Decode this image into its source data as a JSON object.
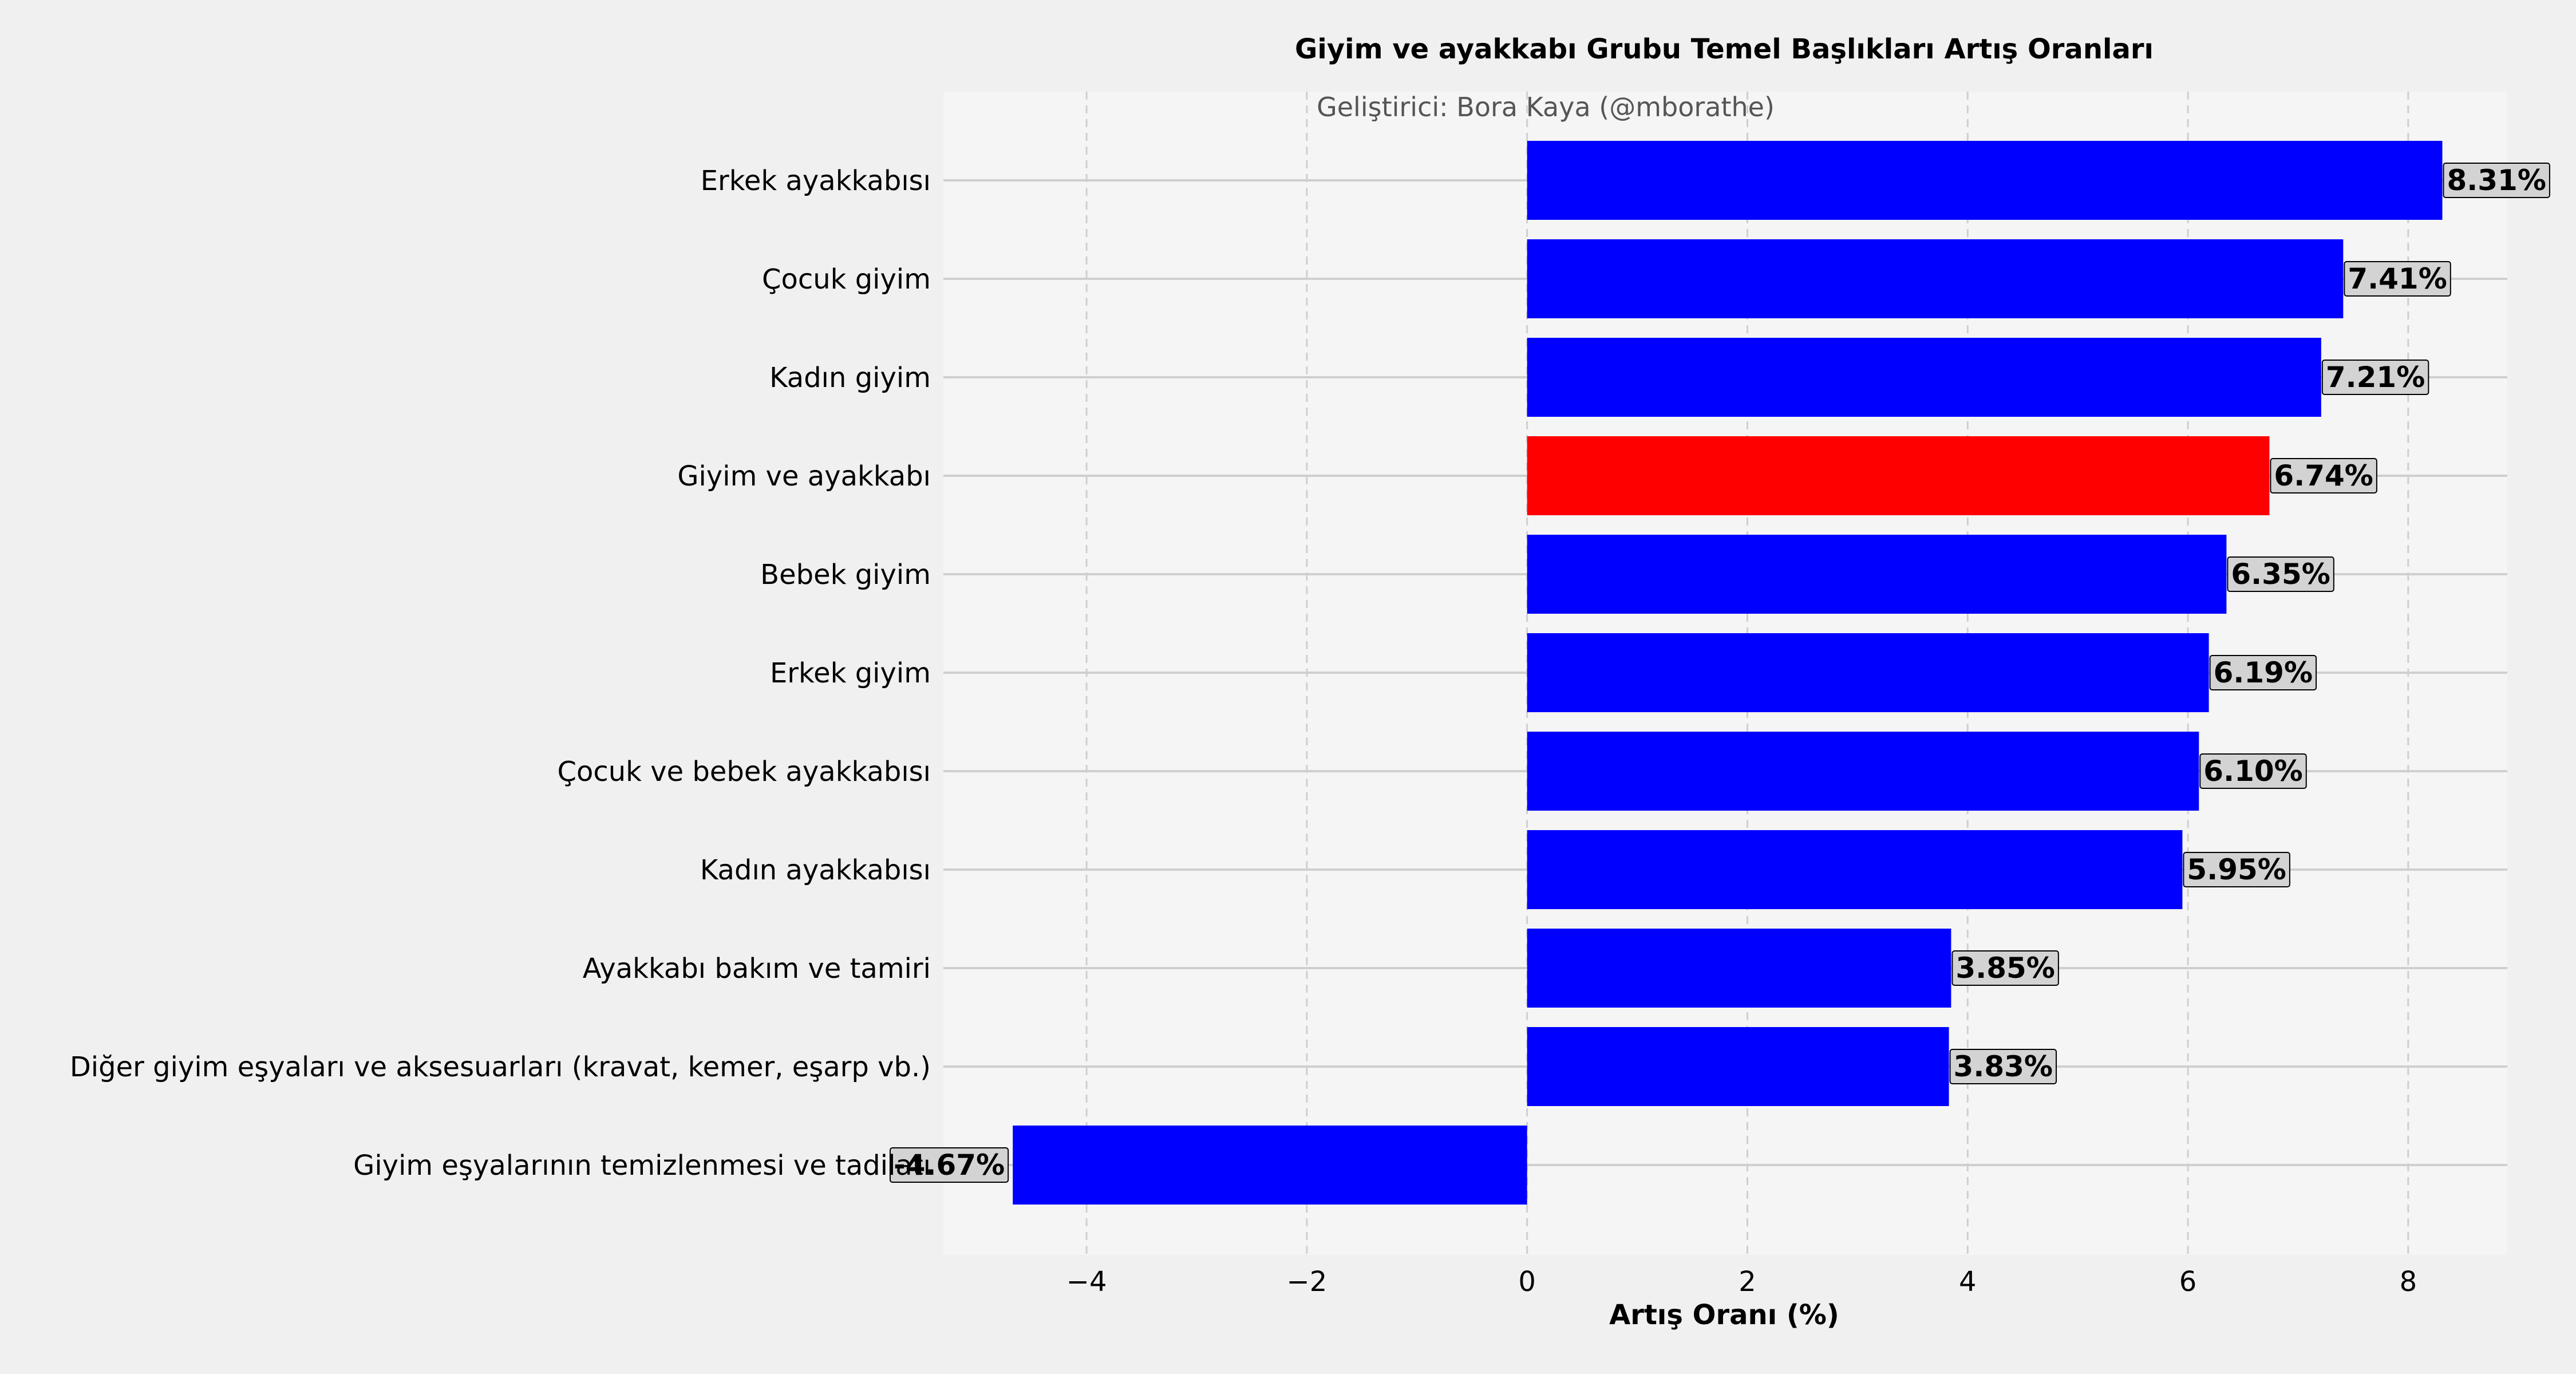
{
  "chart_data": {
    "type": "bar",
    "orientation": "horizontal",
    "title": "Giyim ve ayakkabı Grubu Temel Başlıkları Artış Oranları",
    "subtitle": "Geliştirici: Bora Kaya (@mborathe)",
    "xlabel": "Artış Oranı (%)",
    "ylabel": "",
    "xlim": [
      -5.3,
      8.9
    ],
    "xticks": [
      -4,
      -2,
      0,
      2,
      4,
      6,
      8
    ],
    "xtick_labels": [
      "−4",
      "−2",
      "0",
      "2",
      "4",
      "6",
      "8"
    ],
    "categories": [
      "Erkek ayakkabısı",
      "Çocuk giyim",
      "Kadın giyim",
      "Giyim ve ayakkabı",
      "Bebek giyim",
      "Erkek giyim",
      "Çocuk ve bebek ayakkabısı",
      "Kadın ayakkabısı",
      "Ayakkabı bakım ve tamiri",
      "Diğer giyim eşyaları ve aksesuarları (kravat, kemer, eşarp vb.)",
      "Giyim eşyalarının temizlenmesi ve tadilatı"
    ],
    "values": [
      8.31,
      7.41,
      7.21,
      6.74,
      6.35,
      6.19,
      6.1,
      5.95,
      3.85,
      3.83,
      -4.67
    ],
    "value_labels": [
      "8.31%",
      "7.41%",
      "7.21%",
      "6.74%",
      "6.35%",
      "6.19%",
      "6.10%",
      "5.95%",
      "3.85%",
      "3.83%",
      "-4.67%"
    ],
    "bar_colors": [
      "#0000ff",
      "#0000ff",
      "#0000ff",
      "#ff0000",
      "#0000ff",
      "#0000ff",
      "#0000ff",
      "#0000ff",
      "#0000ff",
      "#0000ff",
      "#0000ff"
    ],
    "grid": true,
    "colors": {
      "figure_background": "#f0f0f0",
      "axes_background": "#f5f5f5",
      "grid": "#cfcfcf",
      "label_box": "#d3d3d3"
    }
  }
}
